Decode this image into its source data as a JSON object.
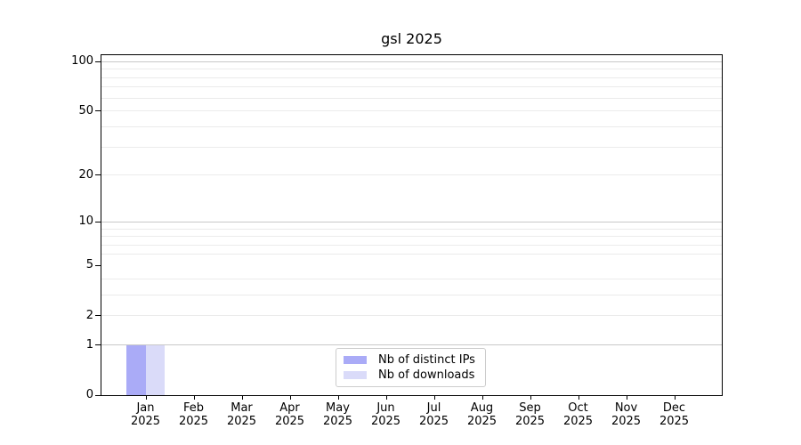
{
  "chart_data": {
    "type": "bar",
    "title": "gsl 2025",
    "categories": [
      "Jan 2025",
      "Feb 2025",
      "Mar 2025",
      "Apr 2025",
      "May 2025",
      "Jun 2025",
      "Jul 2025",
      "Aug 2025",
      "Sep 2025",
      "Oct 2025",
      "Nov 2025",
      "Dec 2025"
    ],
    "series": [
      {
        "name": "Nb of distinct IPs",
        "color": "#aaabf7",
        "values": [
          1,
          0,
          0,
          0,
          0,
          0,
          0,
          0,
          0,
          0,
          0,
          0
        ]
      },
      {
        "name": "Nb of downloads",
        "color": "#dadbf9",
        "values": [
          1,
          0,
          0,
          0,
          0,
          0,
          0,
          0,
          0,
          0,
          0,
          0
        ]
      }
    ],
    "yticks": [
      100,
      50,
      20,
      10,
      5,
      2,
      1,
      0
    ],
    "major_grid_values": [
      1,
      10,
      100
    ],
    "minor_grid_values": [
      2,
      3,
      4,
      6,
      7,
      8,
      9,
      20,
      30,
      40,
      60,
      70,
      80,
      90
    ],
    "yscale": "log1p",
    "ylim": [
      0,
      110
    ],
    "xlabel": "",
    "ylabel": "",
    "grid": "both",
    "legend_position": "lower center",
    "colors": {
      "axis": "#000000",
      "major_grid": "#c8c8c8",
      "minor_grid": "#ebebeb",
      "legend_border": "#cccccc",
      "text": "#000000"
    }
  }
}
